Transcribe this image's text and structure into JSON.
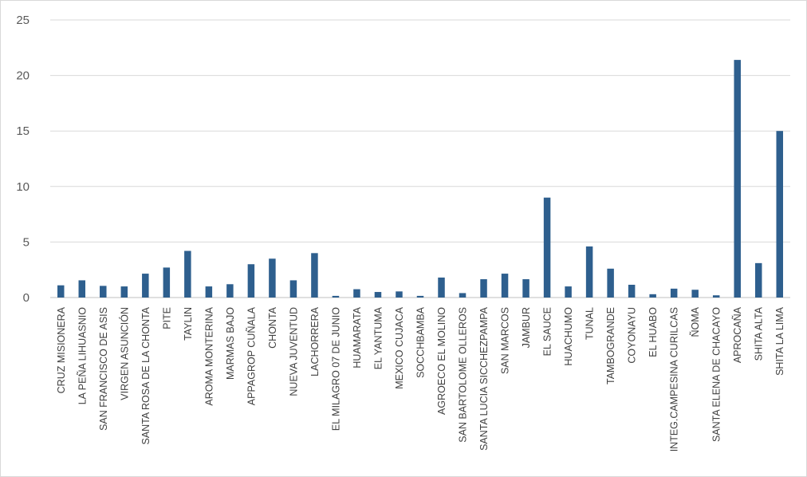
{
  "chart_data": {
    "type": "bar",
    "title": "",
    "xlabel": "",
    "ylabel": "",
    "ylim": [
      0,
      25
    ],
    "yticks": [
      0,
      5,
      10,
      15,
      20,
      25
    ],
    "grid": true,
    "legend": "none",
    "bar_color": "#2e5f8e",
    "categories": [
      "CRUZ MISIONERA",
      "LA PEÑA LIHUASNIO",
      "SAN FRANCISCO DE ASIS",
      "VIRGEN ASUNCIÓN",
      "SANTA ROSA DE LA CHONTA",
      "PITE",
      "TAYLIN",
      "AROMA MONTERINA",
      "MARMAS BAJO",
      "APPAGROP CUÑALA",
      "CHONTA",
      "NUEVA JUVENTUD",
      "LACHORRERA",
      "EL MILAGRO 07 DE JUNIO",
      "HUAMARATA",
      "EL YANTUMA",
      "MEXICO CUJACA",
      "SOCCHBAMBA",
      "AGROECO EL MOLINO",
      "SAN BARTOLOME  OLLEROS",
      "SANTA LUCIA SICCHEZPAMPA",
      "SAN MARCOS",
      "JAMBUR",
      "EL SAUCE",
      "HUACHUMO",
      "TUNAL",
      "TAMBOGRANDE",
      "COYONAYU",
      "EL HUABO",
      "INTEG.CAMPESINA CURILCAS",
      "ÑOMA",
      "SANTA ELENA DE CHACAYO",
      "APROCAÑA",
      "SHITA ALTA",
      "SHITA LA LIMA"
    ],
    "values": [
      1.1,
      1.55,
      1.05,
      1.0,
      2.15,
      2.7,
      4.2,
      1.0,
      1.2,
      3.0,
      3.5,
      1.55,
      4.0,
      0.15,
      0.75,
      0.5,
      0.55,
      0.15,
      1.8,
      0.4,
      1.65,
      2.15,
      1.65,
      9.0,
      1.0,
      4.6,
      2.6,
      1.15,
      0.3,
      0.8,
      0.7,
      0.2,
      21.4,
      3.1,
      15.0
    ]
  }
}
